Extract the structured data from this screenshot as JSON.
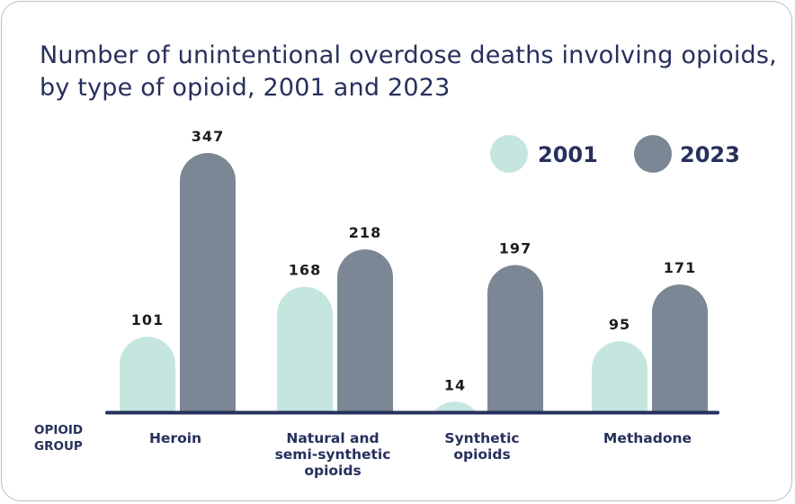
{
  "chart_data": {
    "type": "bar",
    "title_lines": [
      "Number of unintentional overdose deaths involving opioids,",
      "by type of opioid, 2001 and 2023"
    ],
    "xlabel_lines": [
      "OPIOID",
      "GROUP"
    ],
    "ylabel": "",
    "categories": [
      [
        "Heroin"
      ],
      [
        "Natural and",
        "semi-synthetic",
        "opioids"
      ],
      [
        "Synthetic",
        "opioids"
      ],
      [
        "Methadone"
      ]
    ],
    "series": [
      {
        "name": "2001",
        "color": "#c4e6df",
        "values": [
          101,
          168,
          14,
          95
        ]
      },
      {
        "name": "2023",
        "color": "#7b8794",
        "values": [
          347,
          218,
          197,
          171
        ]
      }
    ],
    "ylim": [
      0,
      347
    ],
    "grid": false,
    "legend_position": "top-right",
    "axis_color": "#26305c"
  }
}
